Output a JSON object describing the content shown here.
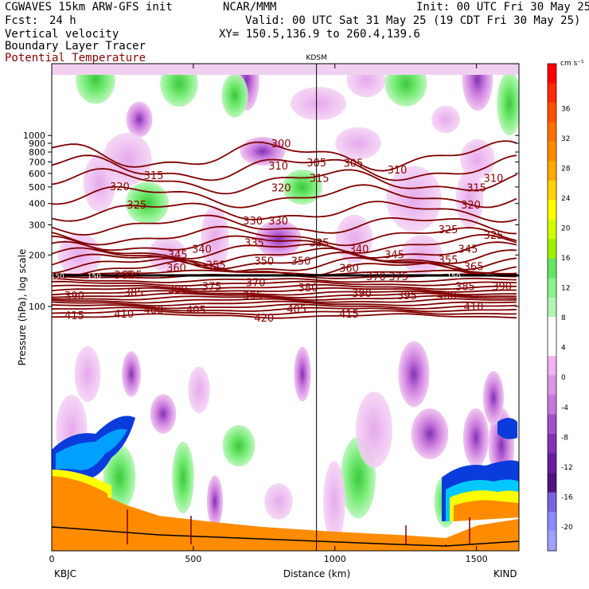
{
  "header": {
    "model_line": "CGWAVES 15km ARW-GFS init",
    "org": "NCAR/MMM",
    "init_line": "Init: 00 UTC Fri 30 May 25",
    "fcst_label": "Fcst:",
    "fcst_value": "24 h",
    "valid_line": "Valid: 00 UTC Sat 31 May 25 (19 CDT Fri 30 May 25)",
    "field1": "Vertical velocity",
    "xy_line": "XY= 150.5,136.9 to 260.4,139.6",
    "field2": "Boundary Layer Tracer",
    "field3": "Potential Temperature",
    "marker_label": "KDSM",
    "left_station": "KBJC",
    "right_station": "KIND"
  },
  "colors": {
    "theta_contour": "#800000",
    "terrain": "#ff8c00",
    "tracer_blue": "#0a3cdc",
    "updraft_green": "#5ae65a",
    "downdraft_purple": "#a050c8"
  },
  "chart_data": {
    "type": "heatmap",
    "xlabel": "Distance (km)",
    "ylabel": "Pressure (hPa), log scale",
    "xlim": [
      0,
      1650
    ],
    "ylim": [
      1000,
      20
    ],
    "y_scale": "log",
    "x_ticks": [
      0,
      500,
      1000,
      1500
    ],
    "x_tick_labels": [
      "0",
      "500",
      "1000",
      "1500"
    ],
    "y_ticks": [
      100,
      200,
      300,
      400,
      500,
      600,
      700,
      800,
      900,
      1000
    ],
    "y_tick_labels": [
      "100",
      "200",
      "300",
      "400",
      "500",
      "600",
      "700",
      "800",
      "900",
      "1000"
    ],
    "marker_x_km": 935,
    "colorbar": {
      "unit": "cm s⁻¹",
      "ticks": [
        "36",
        "32",
        "28",
        "24",
        "20",
        "16",
        "12",
        "8",
        "4",
        "0",
        "-4",
        "-8",
        "-12",
        "-16",
        "-20"
      ],
      "colors": [
        "#ff0000",
        "#ff2a00",
        "#ff5000",
        "#ff6e00",
        "#ff8c00",
        "#ffaa00",
        "#ffd200",
        "#ffff00",
        "#d2ff00",
        "#a0f000",
        "#64e664",
        "#8cf08c",
        "#b4f5b4",
        "#ffffff",
        "#ffffff",
        "#f0b4f0",
        "#dc96e6",
        "#c878dc",
        "#a050c8",
        "#8232b4",
        "#641e9b",
        "#501482",
        "#7864dc",
        "#8c8cff",
        "#a0a0ff"
      ]
    },
    "contour_labels": [
      {
        "text": "415",
        "x": 80,
        "p": 88
      },
      {
        "text": "410",
        "x": 255,
        "p": 90
      },
      {
        "text": "400",
        "x": 360,
        "p": 95
      },
      {
        "text": "405",
        "x": 510,
        "p": 95
      },
      {
        "text": "420",
        "x": 750,
        "p": 85
      },
      {
        "text": "405",
        "x": 865,
        "p": 96
      },
      {
        "text": "415",
        "x": 1050,
        "p": 90
      },
      {
        "text": "410",
        "x": 1490,
        "p": 99
      },
      {
        "text": "390",
        "x": 80,
        "p": 115
      },
      {
        "text": "385",
        "x": 290,
        "p": 120
      },
      {
        "text": "400",
        "x": 1395,
        "p": 115
      },
      {
        "text": "395",
        "x": 1255,
        "p": 115
      },
      {
        "text": "390",
        "x": 1095,
        "p": 119
      },
      {
        "text": "395",
        "x": 710,
        "p": 115
      },
      {
        "text": "380",
        "x": 445,
        "p": 125
      },
      {
        "text": "375",
        "x": 565,
        "p": 130
      },
      {
        "text": "370",
        "x": 720,
        "p": 137
      },
      {
        "text": "380",
        "x": 905,
        "p": 128
      },
      {
        "text": "385",
        "x": 1460,
        "p": 130
      },
      {
        "text": "390",
        "x": 1590,
        "p": 130
      },
      {
        "text": "365",
        "x": 255,
        "p": 152
      },
      {
        "text": "360",
        "x": 440,
        "p": 167
      },
      {
        "text": "355",
        "x": 580,
        "p": 174
      },
      {
        "text": "350",
        "x": 750,
        "p": 183
      },
      {
        "text": "350",
        "x": 880,
        "p": 183
      },
      {
        "text": "360",
        "x": 1050,
        "p": 166
      },
      {
        "text": "370",
        "x": 1145,
        "p": 149
      },
      {
        "text": "375",
        "x": 1225,
        "p": 149
      },
      {
        "text": "365",
        "x": 1490,
        "p": 170
      },
      {
        "text": "345",
        "x": 445,
        "p": 200
      },
      {
        "text": "345",
        "x": 1210,
        "p": 200
      },
      {
        "text": "355",
        "x": 1400,
        "p": 186
      },
      {
        "text": "340",
        "x": 530,
        "p": 215
      },
      {
        "text": "340",
        "x": 1085,
        "p": 215
      },
      {
        "text": "345",
        "x": 1470,
        "p": 215
      },
      {
        "text": "335",
        "x": 715,
        "p": 235
      },
      {
        "text": "335",
        "x": 945,
        "p": 235
      },
      {
        "text": "325",
        "x": 1400,
        "p": 280
      },
      {
        "text": "325",
        "x": 1560,
        "p": 260
      },
      {
        "text": "330",
        "x": 710,
        "p": 315
      },
      {
        "text": "330",
        "x": 800,
        "p": 315
      },
      {
        "text": "320",
        "x": 1480,
        "p": 390
      },
      {
        "text": "325",
        "x": 300,
        "p": 390
      },
      {
        "text": "320",
        "x": 240,
        "p": 500
      },
      {
        "text": "320",
        "x": 810,
        "p": 490
      },
      {
        "text": "315",
        "x": 1500,
        "p": 490
      },
      {
        "text": "315",
        "x": 360,
        "p": 580
      },
      {
        "text": "315",
        "x": 945,
        "p": 560
      },
      {
        "text": "310",
        "x": 1560,
        "p": 560
      },
      {
        "text": "310",
        "x": 800,
        "p": 660
      },
      {
        "text": "310",
        "x": 1220,
        "p": 625
      },
      {
        "text": "305",
        "x": 935,
        "p": 690
      },
      {
        "text": "305",
        "x": 1065,
        "p": 685
      },
      {
        "text": "300",
        "x": 810,
        "p": 890
      },
      {
        "text": "150",
        "x": 20,
        "p": 152
      },
      {
        "text": "150",
        "x": 150,
        "p": 152
      },
      {
        "text": "150",
        "x": 1420,
        "p": 152
      },
      {
        "text": "305",
        "x": 285,
        "p": 152
      }
    ]
  }
}
